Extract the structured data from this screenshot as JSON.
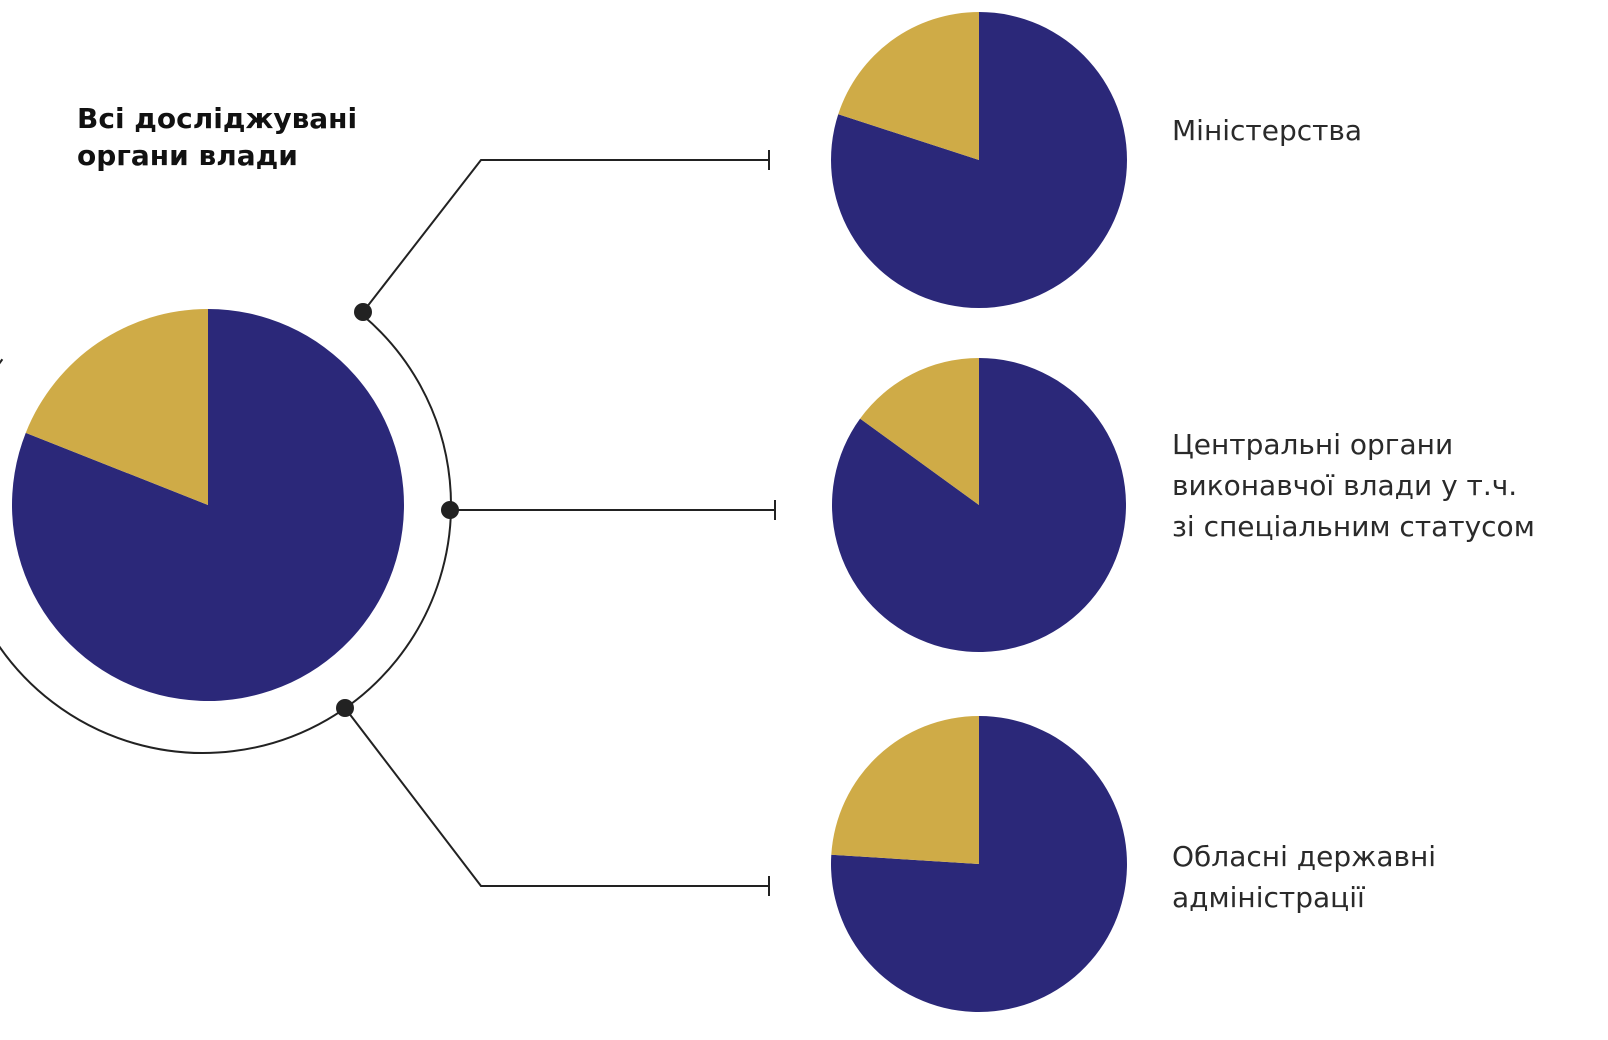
{
  "title_lines": [
    "Всі досліджувані",
    "органи влади"
  ],
  "colors": {
    "navy": "#2b2879",
    "gold": "#cfab47",
    "line": "#222222"
  },
  "chart_data": [
    {
      "type": "pie",
      "name_lines": [
        "Всі досліджувані",
        "органи влади"
      ],
      "slices": [
        {
          "color_key": "navy",
          "value": 81
        },
        {
          "color_key": "gold",
          "value": 19
        }
      ]
    },
    {
      "type": "pie",
      "name_lines": [
        "Міністерства"
      ],
      "slices": [
        {
          "color_key": "navy",
          "value": 80
        },
        {
          "color_key": "gold",
          "value": 20
        }
      ]
    },
    {
      "type": "pie",
      "name_lines": [
        "Центральні органи",
        "виконавчої влади у т.ч.",
        "зі спеціальним статусом"
      ],
      "slices": [
        {
          "color_key": "navy",
          "value": 85
        },
        {
          "color_key": "gold",
          "value": 15
        }
      ]
    },
    {
      "type": "pie",
      "name_lines": [
        "Обласні державні",
        "адміністрації"
      ],
      "slices": [
        {
          "color_key": "navy",
          "value": 76
        },
        {
          "color_key": "gold",
          "value": 24
        }
      ]
    }
  ]
}
